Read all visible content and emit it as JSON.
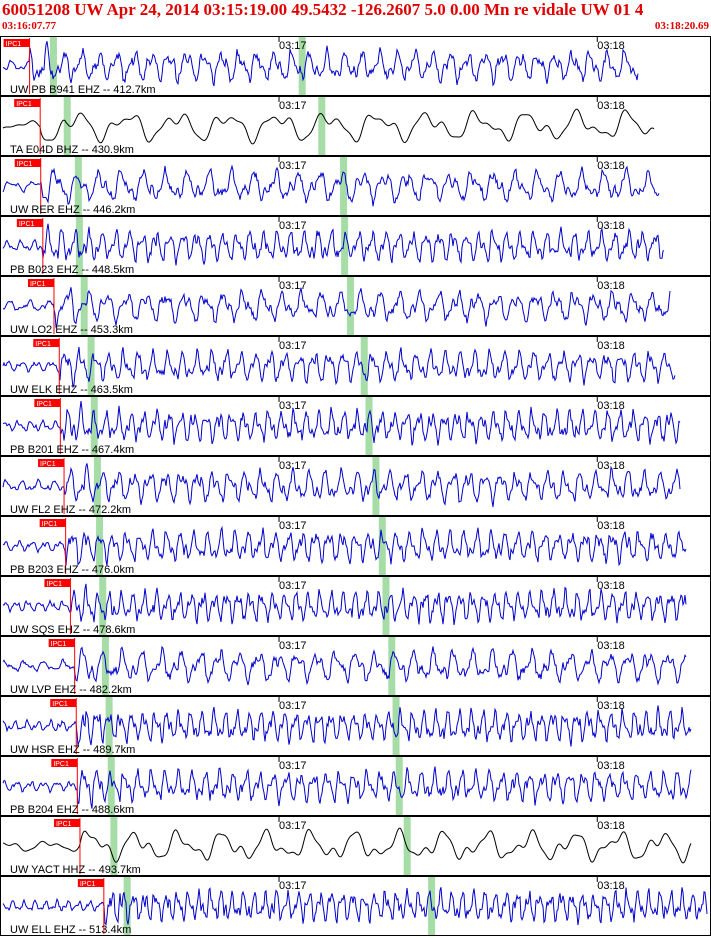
{
  "header": {
    "title": "60051208 UW Apr 24, 2014 03:15:19.00   49.5432 -126.2607  5.0 0.00 Mn re vidale UW 01   4",
    "start_time": "03:16:07.77",
    "end_time": "03:18:20.69"
  },
  "colors": {
    "header_text": "#e00000",
    "trace_blue": "#0000cc",
    "trace_black": "#000000",
    "pick_box": "#ff0000",
    "green_band": "#a6dca6",
    "frame": "#000000"
  },
  "time_axis": {
    "start_sec": 0,
    "end_sec": 132.92,
    "minute_marks": [
      {
        "label": "03:17",
        "sec": 52.23
      },
      {
        "label": "03:18",
        "sec": 112.23
      }
    ]
  },
  "stations": [
    {
      "label": "UW PB B941 EHZ -- 412.7km",
      "pick": "IPC1",
      "pick_sec": 5.2,
      "green_sec": [
        9.6,
        56.5
      ],
      "color": "blue",
      "freq": 1.0,
      "ends_sec": 120
    },
    {
      "label": "TA E04D BHZ -- 430.9km",
      "pick": "IPC1",
      "pick_sec": 7.2,
      "green_sec": [
        12.2,
        60.2
      ],
      "color": "black",
      "freq": 0.35,
      "ends_sec": 123
    },
    {
      "label": "UW RER EHZ -- 446.2km",
      "pick": "IPC1",
      "pick_sec": 7.3,
      "green_sec": [
        14.3,
        64.3
      ],
      "color": "blue",
      "freq": 0.8,
      "ends_sec": 124
    },
    {
      "label": "PB B023 EHZ -- 448.5km",
      "pick": "IPC1",
      "pick_sec": 7.7,
      "green_sec": [
        14.5,
        64.5
      ],
      "color": "blue",
      "freq": 1.3,
      "ends_sec": 125
    },
    {
      "label": "UW LO2 EHZ -- 453.3km",
      "pick": "IPC1",
      "pick_sec": 9.8,
      "green_sec": [
        15.4,
        65.6
      ],
      "color": "blue",
      "freq": 0.9,
      "ends_sec": 126
    },
    {
      "label": "UW ELK EHZ -- 463.5km",
      "pick": "IPC1",
      "pick_sec": 10.8,
      "green_sec": [
        16.7,
        68.2
      ],
      "color": "blue",
      "freq": 1.2,
      "ends_sec": 127
    },
    {
      "label": "PB B201 EHZ -- 467.4km",
      "pick": "IPC1",
      "pick_sec": 11.0,
      "green_sec": [
        17.3,
        69.1
      ],
      "color": "blue",
      "freq": 1.4,
      "ends_sec": 128
    },
    {
      "label": "UW FL2 EHZ -- 472.2km",
      "pick": "IPC1",
      "pick_sec": 11.7,
      "green_sec": [
        17.9,
        70.4
      ],
      "color": "blue",
      "freq": 1.1,
      "ends_sec": 128
    },
    {
      "label": "PB B203 EHZ -- 476.0km",
      "pick": "IPC1",
      "pick_sec": 12.0,
      "green_sec": [
        18.3,
        71.6
      ],
      "color": "blue",
      "freq": 1.3,
      "ends_sec": 129
    },
    {
      "label": "UW SQS EHZ -- 478.6km",
      "pick": "IPC1",
      "pick_sec": 12.9,
      "green_sec": [
        18.9,
        72.3
      ],
      "color": "blue",
      "freq": 1.5,
      "ends_sec": 129
    },
    {
      "label": "UW LVP EHZ -- 482.2km",
      "pick": "IPC1",
      "pick_sec": 13.7,
      "green_sec": [
        19.4,
        73.4
      ],
      "color": "blue",
      "freq": 0.9,
      "ends_sec": 129
    },
    {
      "label": "UW HSR EHZ -- 489.7km",
      "pick": "IPC1",
      "pick_sec": 14.0,
      "green_sec": [
        20.1,
        74.2
      ],
      "color": "blue",
      "freq": 1.5,
      "ends_sec": 130
    },
    {
      "label": "PB B204 EHZ -- 488.6km",
      "pick": "IPC1",
      "pick_sec": 14.2,
      "green_sec": [
        20.5,
        74.8
      ],
      "color": "blue",
      "freq": 1.3,
      "ends_sec": 130
    },
    {
      "label": "UW YACT HHZ -- 493.7km",
      "pick": "IPC1",
      "pick_sec": 14.7,
      "green_sec": [
        21.0,
        76.3
      ],
      "color": "black",
      "freq": 0.4,
      "ends_sec": 130
    },
    {
      "label": "UW ELL EHZ -- 513.4km",
      "pick": "IPC1",
      "pick_sec": 19.2,
      "green_sec": [
        23.5,
        80.9
      ],
      "color": "blue",
      "freq": 1.6,
      "ends_sec": 133
    }
  ]
}
